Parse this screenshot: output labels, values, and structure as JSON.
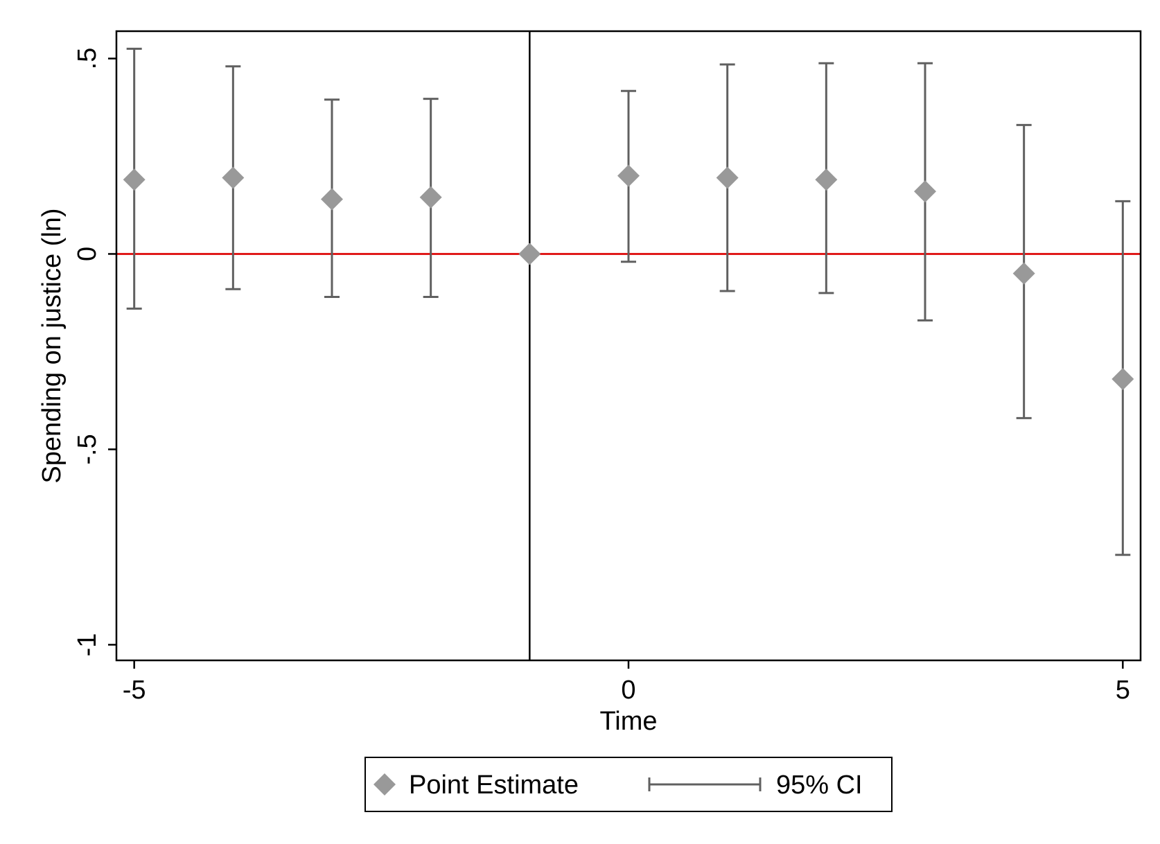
{
  "chart_data": {
    "type": "scatter",
    "xlabel": "Time",
    "ylabel": "Spending on justice (ln)",
    "xlim": [
      -5.18,
      5.18
    ],
    "ylim": [
      -1.04,
      0.57
    ],
    "x_ticks": [
      -5,
      0,
      5
    ],
    "x_tick_labels": [
      "-5",
      "0",
      "5"
    ],
    "y_ticks": [
      0.5,
      0,
      -0.5,
      -1
    ],
    "y_tick_labels": [
      ".5",
      "0",
      "-.5",
      "-1"
    ],
    "grid": false,
    "reference_lines": {
      "horizontal_zero": 0,
      "vertical_x": -1,
      "horizontal_color": "#e01a1a",
      "vertical_color": "#000000"
    },
    "series": [
      {
        "name": "Point Estimate",
        "marker": "diamond",
        "color": "#999999",
        "x": [
          -5,
          -4,
          -3,
          -2,
          -1,
          0,
          1,
          2,
          3,
          4,
          5
        ],
        "y": [
          0.19,
          0.195,
          0.14,
          0.145,
          0.0,
          0.2,
          0.195,
          0.19,
          0.16,
          -0.05,
          -0.32
        ]
      },
      {
        "name": "95% CI",
        "type": "errorbar",
        "color": "#606060",
        "x": [
          -5,
          -4,
          -3,
          -2,
          0,
          1,
          2,
          3,
          4,
          5
        ],
        "lower": [
          -0.14,
          -0.09,
          -0.11,
          -0.11,
          -0.02,
          -0.095,
          -0.1,
          -0.17,
          -0.42,
          -0.77
        ],
        "upper": [
          0.525,
          0.48,
          0.395,
          0.397,
          0.417,
          0.485,
          0.488,
          0.488,
          0.33,
          0.135
        ]
      }
    ],
    "legend": {
      "position": "bottom-center",
      "entries": [
        "Point Estimate",
        "95% CI"
      ]
    }
  }
}
